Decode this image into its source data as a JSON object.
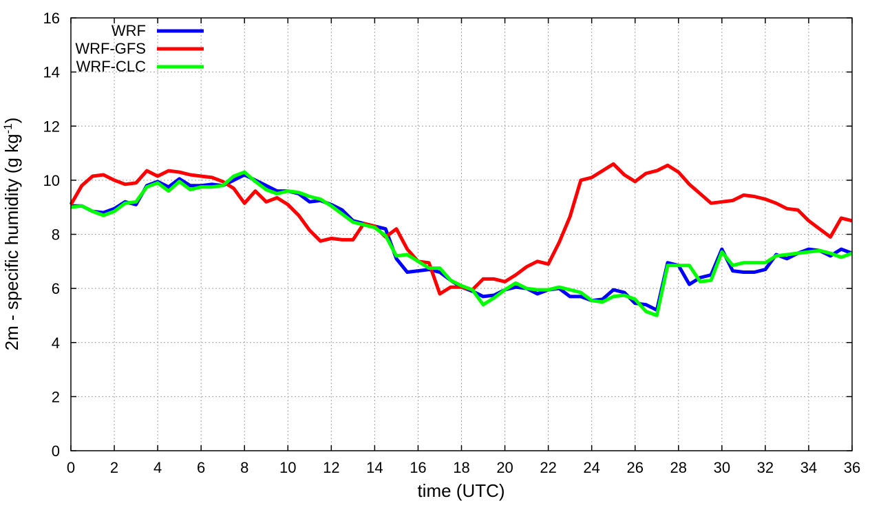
{
  "chart_data": {
    "type": "line",
    "xlabel": "time (UTC)",
    "ylabel_main": "2m - specific humidity (g kg",
    "ylabel_sup": "-1",
    "ylabel_close": ")",
    "xlim": [
      0,
      36
    ],
    "ylim": [
      0,
      16
    ],
    "x_ticks": [
      0,
      2,
      4,
      6,
      8,
      10,
      12,
      14,
      16,
      18,
      20,
      22,
      24,
      26,
      28,
      30,
      32,
      34,
      36
    ],
    "y_ticks": [
      0,
      2,
      4,
      6,
      8,
      10,
      12,
      14,
      16
    ],
    "grid": true,
    "legend_position": "top-left",
    "x": [
      0,
      0.5,
      1,
      1.5,
      2,
      2.5,
      3,
      3.5,
      4,
      4.5,
      5,
      5.5,
      6,
      6.5,
      7,
      7.5,
      8,
      8.5,
      9,
      9.5,
      10,
      10.5,
      11,
      11.5,
      12,
      12.5,
      13,
      13.5,
      14,
      14.5,
      15,
      15.5,
      16,
      16.5,
      17,
      17.5,
      18,
      18.5,
      19,
      19.5,
      20,
      20.5,
      21,
      21.5,
      22,
      22.5,
      23,
      23.5,
      24,
      24.5,
      25,
      25.5,
      26,
      26.5,
      27,
      27.5,
      28,
      28.5,
      29,
      29.5,
      30,
      30.5,
      31,
      31.5,
      32,
      32.5,
      33,
      33.5,
      34,
      34.5,
      35,
      35.5,
      36
    ],
    "series": [
      {
        "name": "WRF",
        "color": "#0000ff",
        "values": [
          9.05,
          9.05,
          8.85,
          8.8,
          8.95,
          9.2,
          9.1,
          9.8,
          9.95,
          9.75,
          10.05,
          9.8,
          9.8,
          9.85,
          9.8,
          10.0,
          10.2,
          10.0,
          9.8,
          9.6,
          9.6,
          9.5,
          9.2,
          9.25,
          9.1,
          8.9,
          8.5,
          8.4,
          8.3,
          8.2,
          7.1,
          6.6,
          6.65,
          6.7,
          6.6,
          6.3,
          6.05,
          5.9,
          5.7,
          5.75,
          5.95,
          6.05,
          6.0,
          5.8,
          5.95,
          6.0,
          5.7,
          5.7,
          5.55,
          5.6,
          5.95,
          5.85,
          5.45,
          5.4,
          5.2,
          6.95,
          6.85,
          6.15,
          6.4,
          6.5,
          7.45,
          6.65,
          6.6,
          6.6,
          6.7,
          7.25,
          7.1,
          7.3,
          7.45,
          7.4,
          7.2,
          7.45,
          7.3
        ]
      },
      {
        "name": "WRF-GFS",
        "color": "#ff0000",
        "values": [
          9.1,
          9.8,
          10.15,
          10.2,
          10.0,
          9.85,
          9.9,
          10.35,
          10.15,
          10.35,
          10.3,
          10.2,
          10.15,
          10.1,
          9.95,
          9.7,
          9.15,
          9.6,
          9.2,
          9.35,
          9.1,
          8.7,
          8.15,
          7.75,
          7.85,
          7.8,
          7.8,
          8.4,
          8.3,
          7.9,
          8.2,
          7.45,
          7.0,
          6.95,
          5.8,
          6.05,
          6.05,
          5.95,
          6.35,
          6.35,
          6.25,
          6.5,
          6.8,
          7.0,
          6.9,
          7.7,
          8.65,
          10.0,
          10.1,
          10.35,
          10.6,
          10.2,
          9.95,
          10.25,
          10.35,
          10.55,
          10.3,
          9.85,
          9.5,
          9.15,
          9.2,
          9.25,
          9.45,
          9.4,
          9.3,
          9.15,
          8.95,
          8.9,
          8.5,
          8.2,
          7.9,
          8.6,
          8.5
        ]
      },
      {
        "name": "WRF-CLC",
        "color": "#00ff00",
        "values": [
          9.0,
          9.05,
          8.85,
          8.7,
          8.85,
          9.15,
          9.2,
          9.75,
          9.9,
          9.6,
          9.95,
          9.65,
          9.75,
          9.75,
          9.8,
          10.15,
          10.3,
          9.95,
          9.65,
          9.5,
          9.6,
          9.55,
          9.4,
          9.3,
          9.05,
          8.75,
          8.45,
          8.35,
          8.25,
          7.95,
          7.2,
          7.25,
          7.0,
          6.75,
          6.75,
          6.3,
          6.1,
          5.95,
          5.4,
          5.65,
          5.95,
          6.2,
          6.0,
          5.95,
          5.95,
          6.05,
          5.95,
          5.85,
          5.55,
          5.5,
          5.7,
          5.75,
          5.6,
          5.15,
          5.0,
          6.85,
          6.85,
          6.85,
          6.25,
          6.3,
          7.35,
          6.85,
          6.95,
          6.95,
          6.95,
          7.2,
          7.25,
          7.3,
          7.35,
          7.4,
          7.3,
          7.15,
          7.3
        ]
      }
    ]
  }
}
